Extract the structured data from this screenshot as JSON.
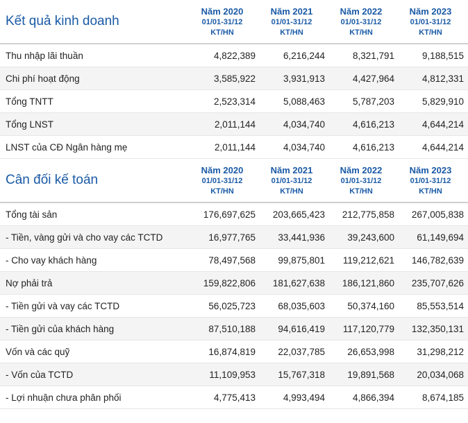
{
  "income": {
    "title": "Kết quả kinh doanh",
    "columns": [
      {
        "year": "Năm 2020",
        "range": "01/01-31/12",
        "unit": "KT/HN"
      },
      {
        "year": "Năm 2021",
        "range": "01/01-31/12",
        "unit": "KT/HN"
      },
      {
        "year": "Năm 2022",
        "range": "01/01-31/12",
        "unit": "KT/HN"
      },
      {
        "year": "Năm 2023",
        "range": "01/01-31/12",
        "unit": "KT/HN"
      }
    ],
    "rows": [
      {
        "label": "Thu nhập lãi thuần",
        "values": [
          "4,822,389",
          "6,216,244",
          "8,321,791",
          "9,188,515"
        ]
      },
      {
        "label": "Chi phí hoạt động",
        "values": [
          "3,585,922",
          "3,931,913",
          "4,427,964",
          "4,812,331"
        ]
      },
      {
        "label": "Tổng TNTT",
        "values": [
          "2,523,314",
          "5,088,463",
          "5,787,203",
          "5,829,910"
        ]
      },
      {
        "label": "Tổng LNST",
        "values": [
          "2,011,144",
          "4,034,740",
          "4,616,213",
          "4,644,214"
        ]
      },
      {
        "label": "LNST của CĐ Ngân hàng mẹ",
        "values": [
          "2,011,144",
          "4,034,740",
          "4,616,213",
          "4,644,214"
        ]
      }
    ]
  },
  "balance": {
    "title": "Cân đối kế toán",
    "columns": [
      {
        "year": "Năm 2020",
        "range": "01/01-31/12",
        "unit": "KT/HN"
      },
      {
        "year": "Năm 2021",
        "range": "01/01-31/12",
        "unit": "KT/HN"
      },
      {
        "year": "Năm 2022",
        "range": "01/01-31/12",
        "unit": "KT/HN"
      },
      {
        "year": "Năm 2023",
        "range": "01/01-31/12",
        "unit": "KT/HN"
      }
    ],
    "rows": [
      {
        "label": "Tổng tài sản",
        "values": [
          "176,697,625",
          "203,665,423",
          "212,775,858",
          "267,005,838"
        ]
      },
      {
        "label": "- Tiền, vàng gửi và cho vay các TCTD",
        "values": [
          "16,977,765",
          "33,441,936",
          "39,243,600",
          "61,149,694"
        ]
      },
      {
        "label": "- Cho vay khách hàng",
        "values": [
          "78,497,568",
          "99,875,801",
          "119,212,621",
          "146,782,639"
        ]
      },
      {
        "label": "Nợ phải trả",
        "values": [
          "159,822,806",
          "181,627,638",
          "186,121,860",
          "235,707,626"
        ]
      },
      {
        "label": "- Tiền gửi và vay các TCTD",
        "values": [
          "56,025,723",
          "68,035,603",
          "50,374,160",
          "85,553,514"
        ]
      },
      {
        "label": "- Tiền gửi của khách hàng",
        "values": [
          "87,510,188",
          "94,616,419",
          "117,120,779",
          "132,350,131"
        ]
      },
      {
        "label": "Vốn và các quỹ",
        "values": [
          "16,874,819",
          "22,037,785",
          "26,653,998",
          "31,298,212"
        ]
      },
      {
        "label": "- Vốn của TCTD",
        "values": [
          "11,109,953",
          "15,767,318",
          "19,891,568",
          "20,034,068"
        ]
      },
      {
        "label": "- Lợi nhuận chưa phân phối",
        "values": [
          "4,775,413",
          "4,993,494",
          "4,866,394",
          "8,674,185"
        ]
      }
    ]
  }
}
